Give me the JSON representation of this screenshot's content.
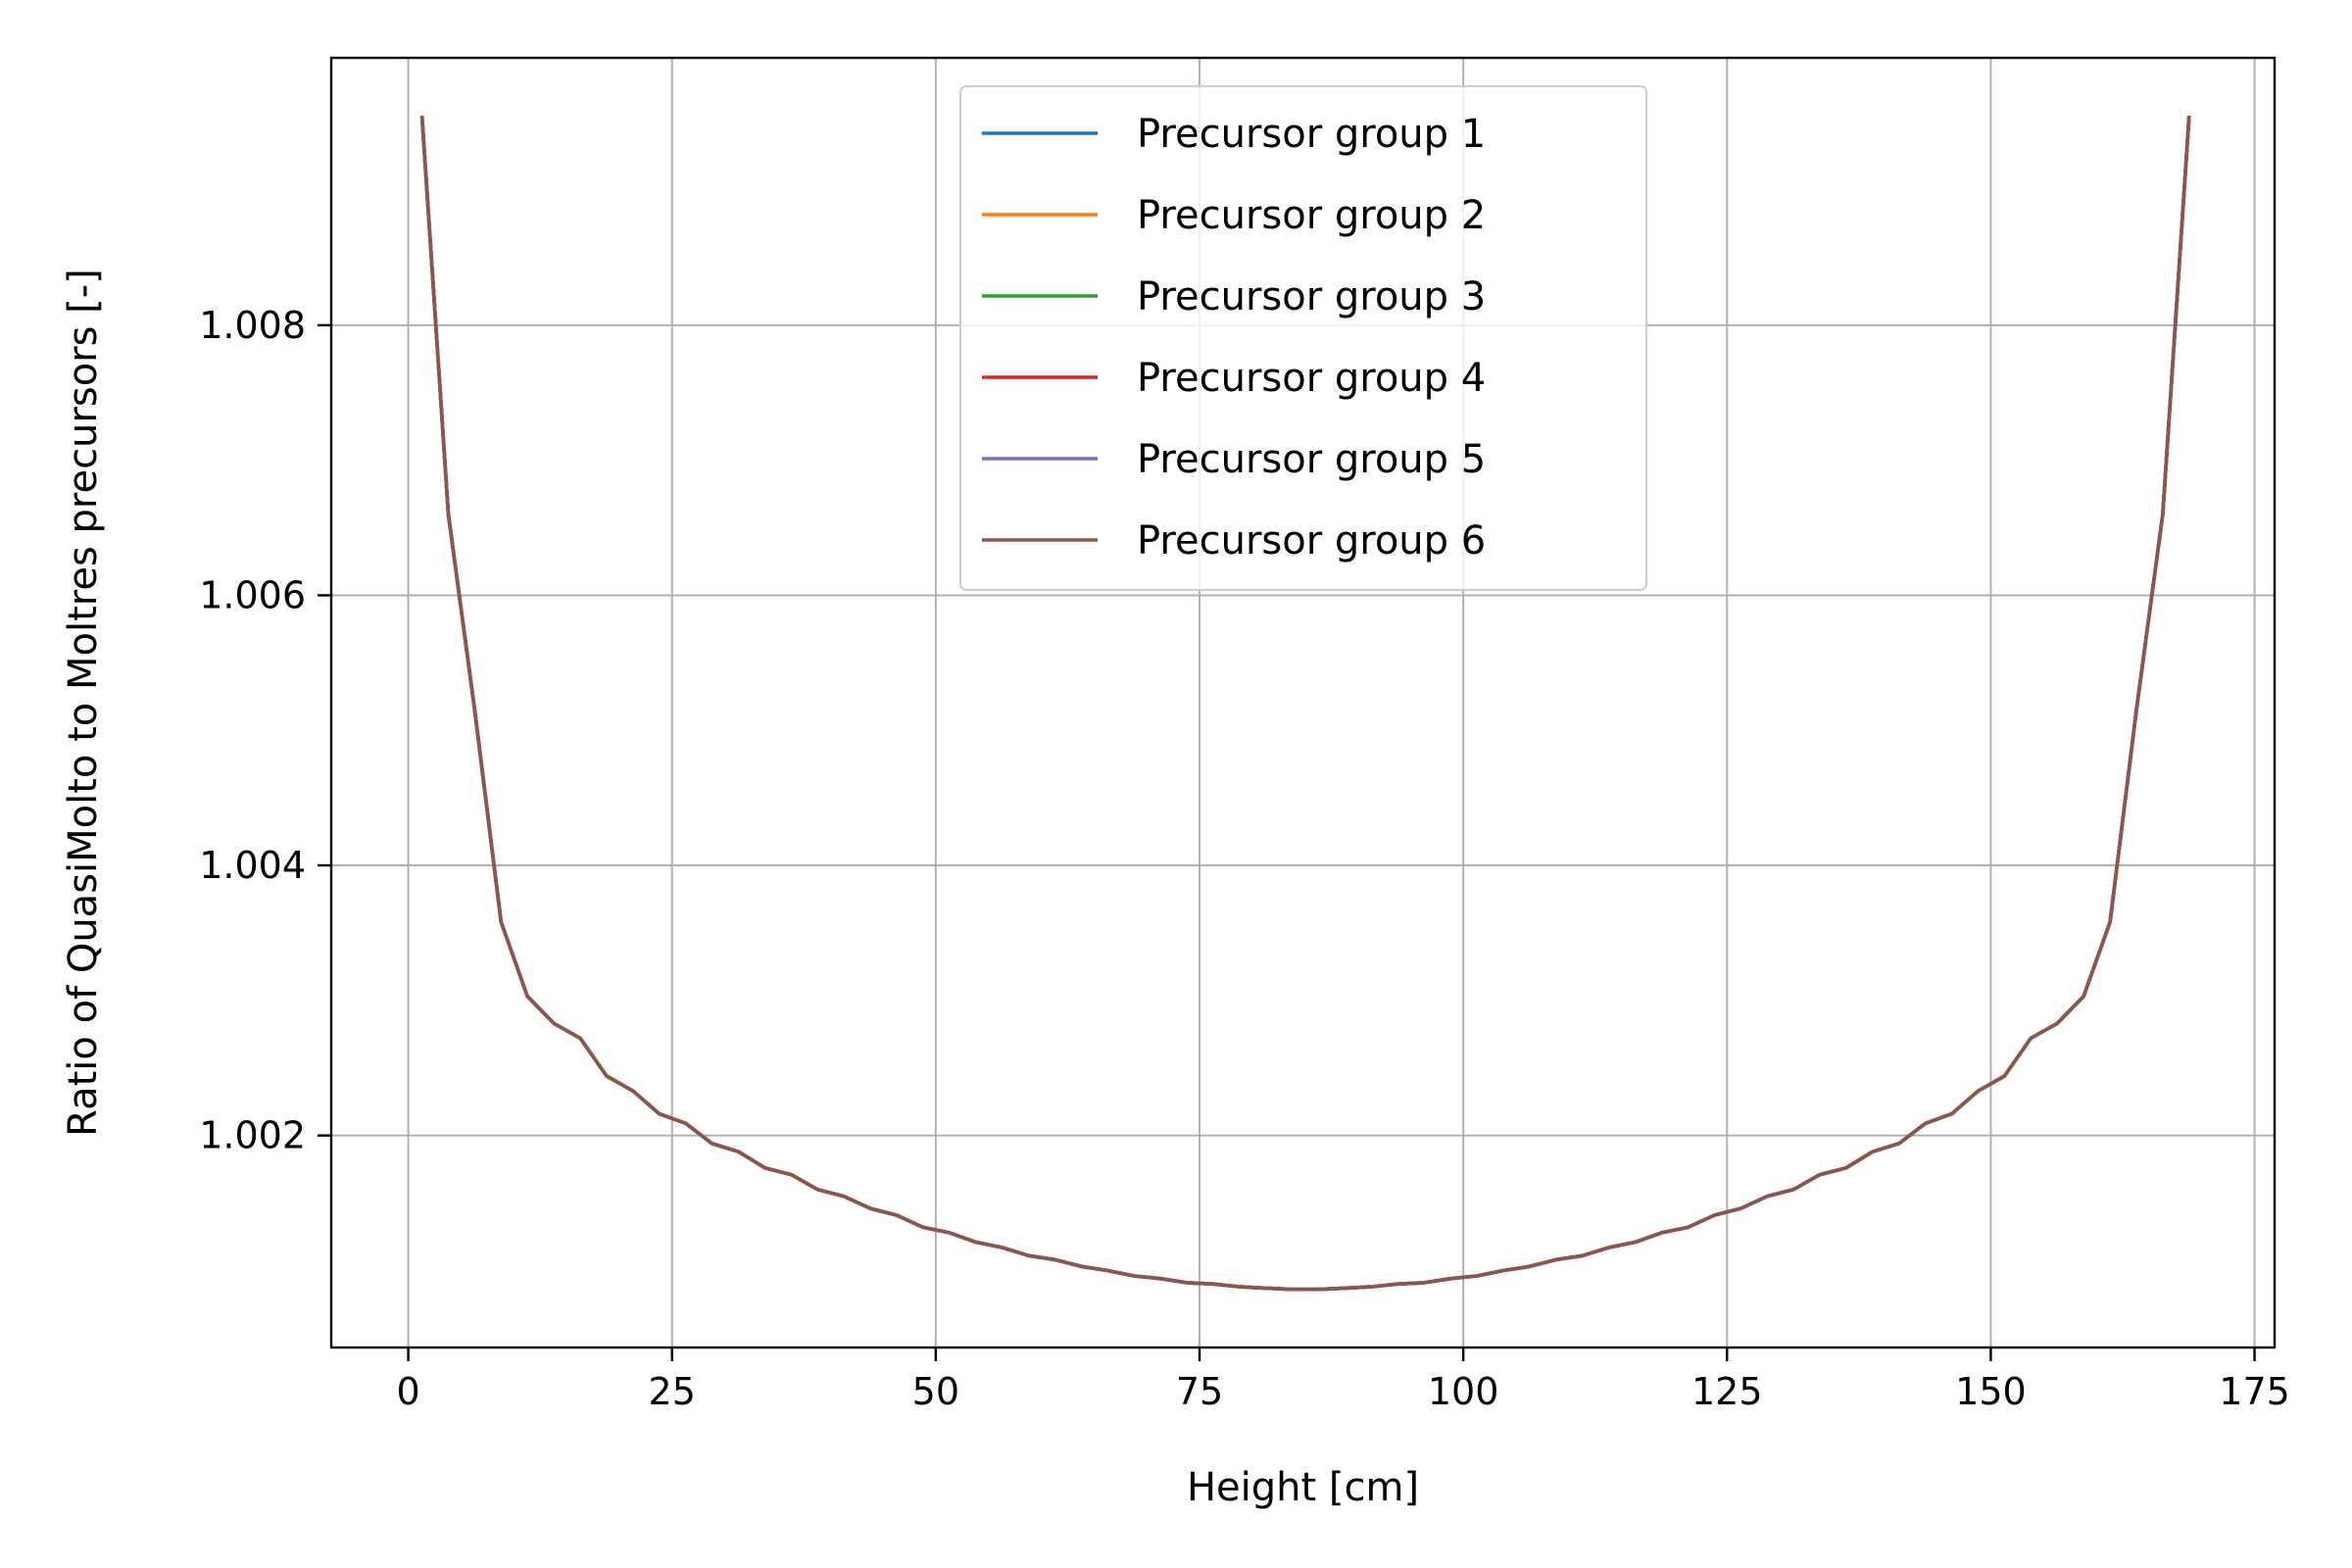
{
  "chart_data": {
    "type": "line",
    "xlabel": "Height [cm]",
    "ylabel": "Ratio of QuasiMolto to Moltres precursors [-]",
    "xlim": [
      -7.3,
      176.9
    ],
    "ylim": [
      1.00043,
      1.00998
    ],
    "xticks": [
      0,
      25,
      50,
      75,
      100,
      125,
      150,
      175
    ],
    "yticks": [
      1.002,
      1.004,
      1.006,
      1.008
    ],
    "xtick_labels": [
      "0",
      "25",
      "50",
      "75",
      "100",
      "125",
      "150",
      "175"
    ],
    "ytick_labels": [
      "1.002",
      "1.004",
      "1.006",
      "1.008"
    ],
    "grid": true,
    "legend_position": "upper-center",
    "x": [
      1.3,
      3.8,
      6.3,
      8.8,
      11.3,
      13.8,
      16.3,
      18.8,
      21.3,
      23.8,
      26.3,
      28.8,
      31.3,
      33.8,
      36.3,
      38.8,
      41.3,
      43.8,
      46.3,
      48.8,
      51.3,
      53.8,
      56.3,
      58.8,
      61.3,
      63.8,
      66.3,
      68.8,
      71.3,
      73.8,
      76.3,
      78.8,
      81.3,
      83.8,
      86.3,
      88.8,
      91.3,
      93.8,
      96.3,
      98.8,
      101.3,
      103.8,
      106.3,
      108.8,
      111.3,
      113.8,
      116.3,
      118.8,
      121.3,
      123.8,
      126.3,
      128.8,
      131.3,
      133.8,
      136.3,
      138.8,
      141.3,
      143.8,
      146.3,
      148.8,
      151.3,
      153.8,
      156.3,
      158.8,
      161.3,
      163.8,
      166.3,
      168.8
    ],
    "series": [
      {
        "name": "Precursor group 1",
        "color": "#1f77b4",
        "values": [
          1.00955,
          1.0066,
          1.00515,
          1.00358,
          1.00303,
          1.00283,
          1.00272,
          1.00244,
          1.00233,
          1.00216,
          1.00209,
          1.00194,
          1.00188,
          1.00176,
          1.00171,
          1.0016,
          1.00155,
          1.00146,
          1.00141,
          1.00132,
          1.00128,
          1.00121,
          1.00117,
          1.00111,
          1.00108,
          1.00103,
          1.001,
          1.00096,
          1.00094,
          1.00091,
          1.0009,
          1.00088,
          1.00087,
          1.00086,
          1.00086,
          1.00087,
          1.00088,
          1.0009,
          1.00091,
          1.00094,
          1.00096,
          1.001,
          1.00103,
          1.00108,
          1.00111,
          1.00117,
          1.00121,
          1.00128,
          1.00132,
          1.00141,
          1.00146,
          1.00155,
          1.0016,
          1.00171,
          1.00176,
          1.00188,
          1.00194,
          1.00209,
          1.00216,
          1.00233,
          1.00244,
          1.00272,
          1.00283,
          1.00303,
          1.00358,
          1.00515,
          1.0066,
          1.00955
        ]
      },
      {
        "name": "Precursor group 2",
        "color": "#ff7f0e",
        "values": [
          1.00955,
          1.0066,
          1.00515,
          1.00358,
          1.00303,
          1.00283,
          1.00272,
          1.00244,
          1.00233,
          1.00216,
          1.00209,
          1.00194,
          1.00188,
          1.00176,
          1.00171,
          1.0016,
          1.00155,
          1.00146,
          1.00141,
          1.00132,
          1.00128,
          1.00121,
          1.00117,
          1.00111,
          1.00108,
          1.00103,
          1.001,
          1.00096,
          1.00094,
          1.00091,
          1.0009,
          1.00088,
          1.00087,
          1.00086,
          1.00086,
          1.00087,
          1.00088,
          1.0009,
          1.00091,
          1.00094,
          1.00096,
          1.001,
          1.00103,
          1.00108,
          1.00111,
          1.00117,
          1.00121,
          1.00128,
          1.00132,
          1.00141,
          1.00146,
          1.00155,
          1.0016,
          1.00171,
          1.00176,
          1.00188,
          1.00194,
          1.00209,
          1.00216,
          1.00233,
          1.00244,
          1.00272,
          1.00283,
          1.00303,
          1.00358,
          1.00515,
          1.0066,
          1.00955
        ]
      },
      {
        "name": "Precursor group 3",
        "color": "#2ca02c",
        "values": [
          1.00955,
          1.0066,
          1.00515,
          1.00358,
          1.00303,
          1.00283,
          1.00272,
          1.00244,
          1.00233,
          1.00216,
          1.00209,
          1.00194,
          1.00188,
          1.00176,
          1.00171,
          1.0016,
          1.00155,
          1.00146,
          1.00141,
          1.00132,
          1.00128,
          1.00121,
          1.00117,
          1.00111,
          1.00108,
          1.00103,
          1.001,
          1.00096,
          1.00094,
          1.00091,
          1.0009,
          1.00088,
          1.00087,
          1.00086,
          1.00086,
          1.00087,
          1.00088,
          1.0009,
          1.00091,
          1.00094,
          1.00096,
          1.001,
          1.00103,
          1.00108,
          1.00111,
          1.00117,
          1.00121,
          1.00128,
          1.00132,
          1.00141,
          1.00146,
          1.00155,
          1.0016,
          1.00171,
          1.00176,
          1.00188,
          1.00194,
          1.00209,
          1.00216,
          1.00233,
          1.00244,
          1.00272,
          1.00283,
          1.00303,
          1.00358,
          1.00515,
          1.0066,
          1.00955
        ]
      },
      {
        "name": "Precursor group 4",
        "color": "#d62728",
        "values": [
          1.00955,
          1.0066,
          1.00515,
          1.00358,
          1.00303,
          1.00283,
          1.00272,
          1.00244,
          1.00233,
          1.00216,
          1.00209,
          1.00194,
          1.00188,
          1.00176,
          1.00171,
          1.0016,
          1.00155,
          1.00146,
          1.00141,
          1.00132,
          1.00128,
          1.00121,
          1.00117,
          1.00111,
          1.00108,
          1.00103,
          1.001,
          1.00096,
          1.00094,
          1.00091,
          1.0009,
          1.00088,
          1.00087,
          1.00086,
          1.00086,
          1.00087,
          1.00088,
          1.0009,
          1.00091,
          1.00094,
          1.00096,
          1.001,
          1.00103,
          1.00108,
          1.00111,
          1.00117,
          1.00121,
          1.00128,
          1.00132,
          1.00141,
          1.00146,
          1.00155,
          1.0016,
          1.00171,
          1.00176,
          1.00188,
          1.00194,
          1.00209,
          1.00216,
          1.00233,
          1.00244,
          1.00272,
          1.00283,
          1.00303,
          1.00358,
          1.00515,
          1.0066,
          1.00955
        ]
      },
      {
        "name": "Precursor group 5",
        "color": "#9467bd",
        "values": [
          1.00955,
          1.0066,
          1.00515,
          1.00358,
          1.00303,
          1.00283,
          1.00272,
          1.00244,
          1.00233,
          1.00216,
          1.00209,
          1.00194,
          1.00188,
          1.00176,
          1.00171,
          1.0016,
          1.00155,
          1.00146,
          1.00141,
          1.00132,
          1.00128,
          1.00121,
          1.00117,
          1.00111,
          1.00108,
          1.00103,
          1.001,
          1.00096,
          1.00094,
          1.00091,
          1.0009,
          1.00088,
          1.00087,
          1.00086,
          1.00086,
          1.00087,
          1.00088,
          1.0009,
          1.00091,
          1.00094,
          1.00096,
          1.001,
          1.00103,
          1.00108,
          1.00111,
          1.00117,
          1.00121,
          1.00128,
          1.00132,
          1.00141,
          1.00146,
          1.00155,
          1.0016,
          1.00171,
          1.00176,
          1.00188,
          1.00194,
          1.00209,
          1.00216,
          1.00233,
          1.00244,
          1.00272,
          1.00283,
          1.00303,
          1.00358,
          1.00515,
          1.0066,
          1.00955
        ]
      },
      {
        "name": "Precursor group 6",
        "color": "#8c564b",
        "values": [
          1.00955,
          1.0066,
          1.00515,
          1.00358,
          1.00303,
          1.00283,
          1.00272,
          1.00244,
          1.00233,
          1.00216,
          1.00209,
          1.00194,
          1.00188,
          1.00176,
          1.00171,
          1.0016,
          1.00155,
          1.00146,
          1.00141,
          1.00132,
          1.00128,
          1.00121,
          1.00117,
          1.00111,
          1.00108,
          1.00103,
          1.001,
          1.00096,
          1.00094,
          1.00091,
          1.0009,
          1.00088,
          1.00087,
          1.00086,
          1.00086,
          1.00087,
          1.00088,
          1.0009,
          1.00091,
          1.00094,
          1.00096,
          1.001,
          1.00103,
          1.00108,
          1.00111,
          1.00117,
          1.00121,
          1.00128,
          1.00132,
          1.00141,
          1.00146,
          1.00155,
          1.0016,
          1.00171,
          1.00176,
          1.00188,
          1.00194,
          1.00209,
          1.00216,
          1.00233,
          1.00244,
          1.00272,
          1.00283,
          1.00303,
          1.00358,
          1.00515,
          1.0066,
          1.00955
        ]
      }
    ]
  }
}
